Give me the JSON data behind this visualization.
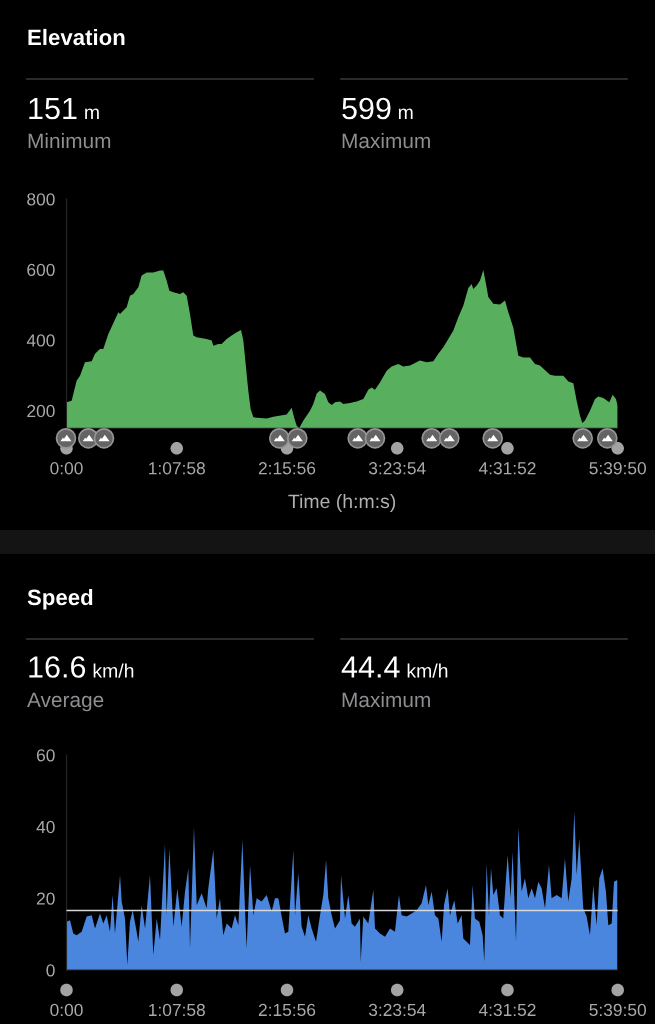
{
  "chart_data": [
    {
      "type": "area",
      "title": "Elevation",
      "xlabel": "Time (h:m:s)",
      "annotations": [
        "151 m",
        "Minimum",
        "599 m",
        "Maximum"
      ],
      "series": [
        {
          "color": "#58b05f",
          "x": [
            0,
            0.053,
            0.104,
            0.139,
            0.19,
            0.259,
            0.293,
            0.344,
            0.378,
            0.43,
            0.533,
            0.55,
            0.618,
            0.652,
            0.687,
            0.738,
            0.772,
            0.824,
            0.892,
            0.961,
            0.995,
            1.029,
            1.057,
            1.098,
            1.166,
            1.2,
            1.235,
            1.269,
            1.303,
            1.338,
            1.44,
            1.492,
            1.509,
            1.56,
            1.594,
            1.646,
            1.697,
            1.749,
            1.793,
            1.817,
            1.868,
            1.892,
            1.92,
            2.057,
            2.125,
            2.262,
            2.314,
            2.338,
            2.365,
            2.392,
            2.434,
            2.502,
            2.536,
            2.571,
            2.605,
            2.656,
            2.69,
            2.725,
            2.759,
            2.81,
            2.845,
            2.913,
            2.982,
            3.05,
            3.101,
            3.136,
            3.17,
            3.221,
            3.29,
            3.341,
            3.41,
            3.461,
            3.53,
            3.632,
            3.701,
            3.769,
            3.821,
            3.872,
            3.923,
            3.975,
            4.026,
            4.078,
            4.129,
            4.163,
            4.18,
            4.215,
            4.249,
            4.283,
            4.317,
            4.334,
            4.386,
            4.454,
            4.506,
            4.54,
            4.591,
            4.643,
            4.694,
            4.763,
            4.814,
            4.865,
            4.968,
            5.02,
            5.105,
            5.157,
            5.208,
            5.242,
            5.276,
            5.3,
            5.328,
            5.379,
            5.431,
            5.465,
            5.516,
            5.578,
            5.612,
            5.646,
            5.663
          ],
          "values": [
            224,
            228,
            285,
            299,
            337,
            340,
            361,
            375,
            375,
            417,
            479,
            474,
            493,
            526,
            531,
            550,
            583,
            592,
            592,
            597,
            597,
            569,
            540,
            536,
            531,
            536,
            526,
            474,
            413,
            408,
            403,
            399,
            384,
            389,
            389,
            403,
            413,
            422,
            429,
            399,
            257,
            205,
            181,
            178,
            183,
            189,
            208,
            181,
            157,
            151,
            172,
            200,
            219,
            249,
            257,
            247,
            224,
            216,
            224,
            226,
            219,
            222,
            226,
            233,
            259,
            266,
            259,
            280,
            313,
            325,
            332,
            325,
            328,
            342,
            337,
            340,
            361,
            380,
            403,
            427,
            465,
            498,
            548,
            559,
            545,
            555,
            569,
            599,
            550,
            522,
            503,
            501,
            512,
            479,
            436,
            356,
            351,
            351,
            332,
            328,
            302,
            299,
            299,
            283,
            278,
            228,
            186,
            165,
            172,
            200,
            233,
            240,
            236,
            224,
            245,
            233,
            214
          ]
        }
      ],
      "xlim": [
        0,
        5.6639
      ],
      "xticks": [
        {
          "value": 0,
          "label": "0:00"
        },
        {
          "value": 1.1328,
          "label": "1:07:58"
        },
        {
          "value": 2.2656,
          "label": "2:15:56"
        },
        {
          "value": 3.3983,
          "label": "3:23:54"
        },
        {
          "value": 4.5311,
          "label": "4:31:52"
        },
        {
          "value": 5.6639,
          "label": "5:39:50"
        }
      ],
      "ylim": [
        150,
        800
      ],
      "yticks": [
        200,
        400,
        600,
        800
      ]
    },
    {
      "type": "area",
      "title": "Speed",
      "annotations": [
        "16.6 km/h",
        "Average",
        "44.4 km/h",
        "Maximum"
      ],
      "series": [
        {
          "color": "#4a86de",
          "x": [
            0,
            0.036,
            0.07,
            0.104,
            0.156,
            0.207,
            0.259,
            0.293,
            0.344,
            0.378,
            0.413,
            0.447,
            0.474,
            0.498,
            0.55,
            0.567,
            0.601,
            0.625,
            0.652,
            0.68,
            0.721,
            0.738,
            0.772,
            0.807,
            0.858,
            0.892,
            0.927,
            0.961,
            1.012,
            1.029,
            1.057,
            1.098,
            1.139,
            1.183,
            1.218,
            1.252,
            1.269,
            1.31,
            1.338,
            1.389,
            1.44,
            1.457,
            1.509,
            1.543,
            1.577,
            1.611,
            1.646,
            1.697,
            1.731,
            1.766,
            1.807,
            1.834,
            1.851,
            1.886,
            1.92,
            1.954,
            2.005,
            2.057,
            2.108,
            2.142,
            2.177,
            2.211,
            2.245,
            2.279,
            2.331,
            2.348,
            2.382,
            2.416,
            2.451,
            2.485,
            2.519,
            2.564,
            2.605,
            2.639,
            2.667,
            2.69,
            2.725,
            2.759,
            2.81,
            2.821,
            2.862,
            2.896,
            2.93,
            2.964,
            3.016,
            3.023,
            3.05,
            3.101,
            3.153,
            3.17,
            3.221,
            3.273,
            3.324,
            3.375,
            3.416,
            3.444,
            3.495,
            3.547,
            3.598,
            3.649,
            3.694,
            3.718,
            3.752,
            3.786,
            3.821,
            3.855,
            3.879,
            3.916,
            3.94,
            3.985,
            4.019,
            4.06,
            4.077,
            4.112,
            4.146,
            4.173,
            4.197,
            4.242,
            4.276,
            4.293,
            4.317,
            4.341,
            4.362,
            4.386,
            4.42,
            4.454,
            4.488,
            4.533,
            4.564,
            4.584,
            4.619,
            4.643,
            4.677,
            4.711,
            4.745,
            4.78,
            4.814,
            4.848,
            4.882,
            4.917,
            4.958,
            4.985,
            5.037,
            5.088,
            5.122,
            5.156,
            5.191,
            5.218,
            5.242,
            5.269,
            5.31,
            5.345,
            5.379,
            5.413,
            5.447,
            5.475,
            5.509,
            5.543,
            5.567,
            5.602,
            5.626,
            5.66
          ],
          "values": [
            13.5,
            13.9,
            10.2,
            9.7,
            10.7,
            14.9,
            15.3,
            11.6,
            15.8,
            13.0,
            15.3,
            10.7,
            20.9,
            10.2,
            26.5,
            19.1,
            14.4,
            1.4,
            13.5,
            16.7,
            10.7,
            7.9,
            18.1,
            11.6,
            26.5,
            4.2,
            14.4,
            8.4,
            35.3,
            15.3,
            33.9,
            12.1,
            22.8,
            12.1,
            21.9,
            28.4,
            6.0,
            40.0,
            18.1,
            21.4,
            17.2,
            22.8,
            33.5,
            14.4,
            20.0,
            9.7,
            13.0,
            11.6,
            15.3,
            12.5,
            36.3,
            17.2,
            6.0,
            29.3,
            15.3,
            20.0,
            19.1,
            20.9,
            16.3,
            20.0,
            20.0,
            14.9,
            10.2,
            10.7,
            33.5,
            15.3,
            27.0,
            12.1,
            9.3,
            15.3,
            11.6,
            7.9,
            15.3,
            20.9,
            30.7,
            20.0,
            15.3,
            11.6,
            13.9,
            26.5,
            14.4,
            20.9,
            13.0,
            12.1,
            14.4,
            2.3,
            14.9,
            13.0,
            22.3,
            11.6,
            10.2,
            9.3,
            11.6,
            10.7,
            20.9,
            15.3,
            14.9,
            15.8,
            16.7,
            18.6,
            23.7,
            18.1,
            21.9,
            15.3,
            14.4,
            7.9,
            18.1,
            22.8,
            15.3,
            19.5,
            13.0,
            15.3,
            8.8,
            7.9,
            7.0,
            23.7,
            14.4,
            13.5,
            9.7,
            2.3,
            29.7,
            15.3,
            28.4,
            20.9,
            22.8,
            15.3,
            14.4,
            32.1,
            20.0,
            33.0,
            7.9,
            40.0,
            21.9,
            25.6,
            20.0,
            22.8,
            20.0,
            24.6,
            22.8,
            17.2,
            29.3,
            20.0,
            20.9,
            20.0,
            31.2,
            19.1,
            25.6,
            44.4,
            26.5,
            36.7,
            17.2,
            14.9,
            9.7,
            23.7,
            12.5,
            25.6,
            28.4,
            21.9,
            12.5,
            13.0,
            24.6,
            25.1
          ]
        }
      ],
      "xlim": [
        0,
        5.6639
      ],
      "xticks": [
        {
          "value": 0,
          "label": "0:00"
        },
        {
          "value": 1.1328,
          "label": "1:07:58"
        },
        {
          "value": 2.2656,
          "label": "2:15:56"
        },
        {
          "value": 3.3983,
          "label": "3:23:54"
        },
        {
          "value": 4.5311,
          "label": "4:31:52"
        },
        {
          "value": 5.6639,
          "label": "5:39:50"
        }
      ],
      "ylim": [
        0,
        60
      ],
      "yticks": [
        0,
        20,
        40,
        60
      ],
      "ref_lines": [
        {
          "axis": "y",
          "value": 16.6,
          "color": "#d8d8d8"
        }
      ]
    }
  ]
}
